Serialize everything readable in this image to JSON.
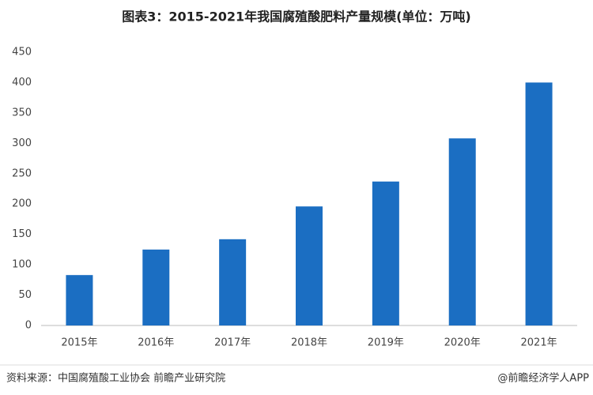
{
  "chart_data": {
    "type": "bar",
    "title": "图表3：2015-2021年我国腐殖酸肥料产量规模(单位：万吨)",
    "categories": [
      "2015年",
      "2016年",
      "2017年",
      "2018年",
      "2019年",
      "2020年",
      "2021年"
    ],
    "values": [
      83,
      125,
      142,
      196,
      237,
      308,
      400
    ],
    "color": "#1b6ec2",
    "ylim": [
      0,
      450
    ],
    "yticks": [
      0,
      50,
      100,
      150,
      200,
      250,
      300,
      350,
      400,
      450
    ],
    "grid": false
  },
  "footer": {
    "source": "资料来源：中国腐殖酸工业协会 前瞻产业研究院",
    "brand": "@前瞻经济学人APP"
  }
}
